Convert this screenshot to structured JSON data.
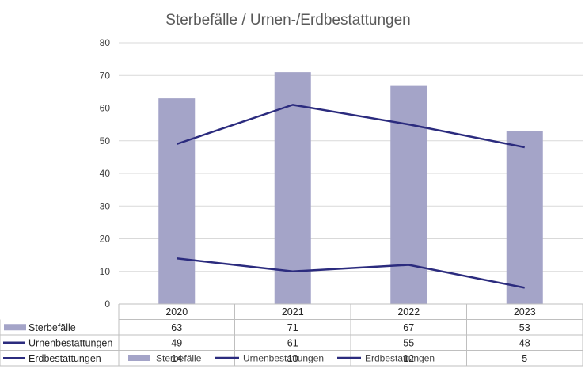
{
  "chart_data": {
    "type": "bar",
    "title": "Sterbefälle / Urnen-/Erdbestattungen",
    "categories": [
      "2020",
      "2021",
      "2022",
      "2023"
    ],
    "ylim": [
      0,
      80
    ],
    "yticks": [
      0,
      10,
      20,
      30,
      40,
      50,
      60,
      70,
      80
    ],
    "grid": true,
    "legend": "bottom",
    "data_table": true,
    "series": [
      {
        "name": "Sterbefälle",
        "kind": "bar",
        "color": "#a4a4c8",
        "values": [
          63,
          71,
          67,
          53
        ]
      },
      {
        "name": "Urnenbestattungen",
        "kind": "line",
        "color": "#2b2b7e",
        "values": [
          49,
          61,
          55,
          48
        ]
      },
      {
        "name": "Erdbestattungen",
        "kind": "line",
        "color": "#2b2b7e",
        "values": [
          14,
          10,
          12,
          5
        ]
      }
    ]
  }
}
